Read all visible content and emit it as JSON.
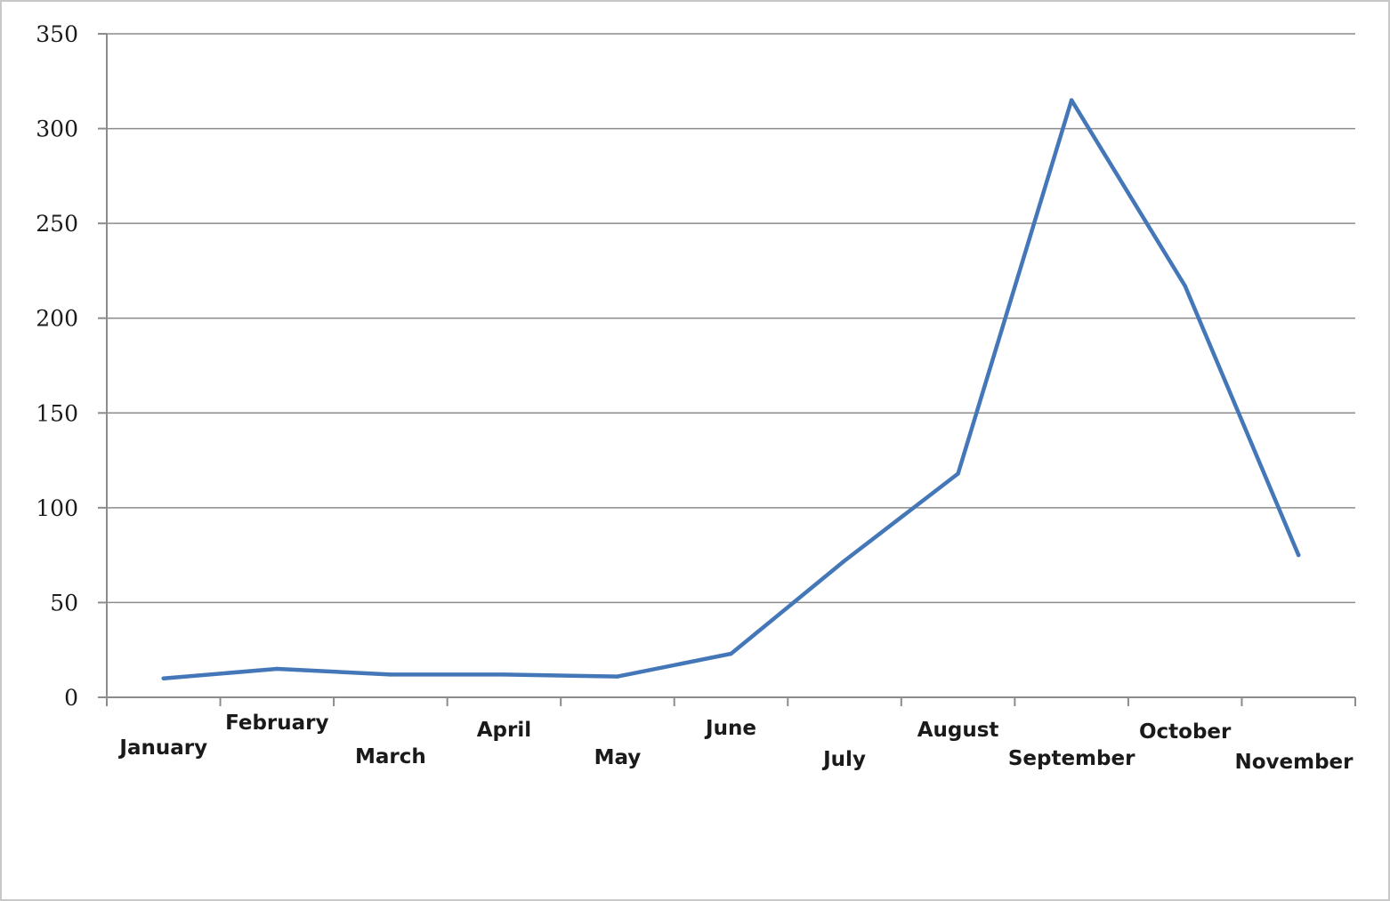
{
  "chart_data": {
    "type": "line",
    "title": "",
    "xlabel": "",
    "ylabel": "",
    "categories": [
      "January",
      "February",
      "March",
      "April",
      "May",
      "June",
      "July",
      "August",
      "September",
      "October",
      "November"
    ],
    "series": [
      {
        "values": [
          10,
          15,
          12,
          12,
          11,
          23,
          72,
          118,
          315,
          217,
          75
        ],
        "color": "#4377b8"
      }
    ],
    "ylim": [
      0,
      350
    ],
    "yticks": [
      0,
      50,
      100,
      150,
      200,
      250,
      300,
      350
    ],
    "ytick_labels": [
      "0",
      "50",
      "100",
      "150",
      "200",
      "250",
      "300",
      "350"
    ],
    "grid": true,
    "legend": "none",
    "gridline_color": "#8c8c8c"
  }
}
